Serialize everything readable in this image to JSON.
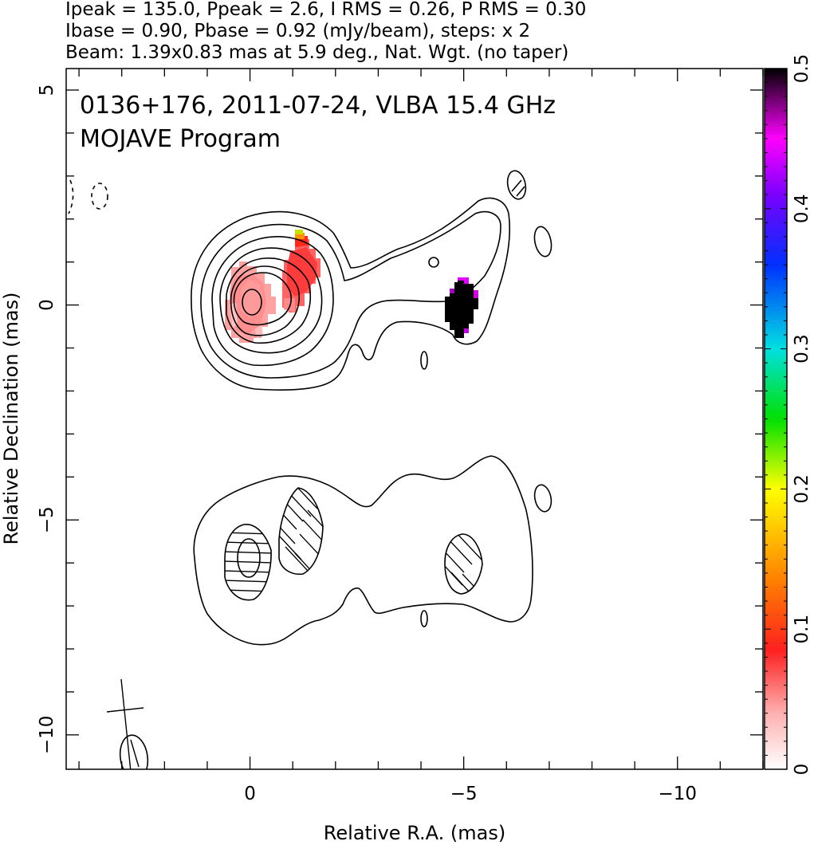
{
  "header": {
    "line1": "Ipeak = 135.0, Ppeak = 2.6, I RMS = 0.26, P RMS = 0.30",
    "line2": "Ibase = 0.90, Pbase = 0.92 (mJy/beam), steps: x 2",
    "line3": "Beam: 1.39x0.83 mas at 5.9 deg., Nat. Wgt. (no taper)"
  },
  "plot_labels": {
    "title": "0136+176, 2011-07-24, VLBA 15.4 GHz",
    "program": "MOJAVE Program"
  },
  "chart_data": {
    "type": "heatmap",
    "xlabel": "Relative R.A. (mas)",
    "ylabel": "Relative Declination (mas)",
    "xlim": [
      4.3,
      -12.0
    ],
    "ylim": [
      -10.8,
      5.5
    ],
    "x_ticks": [
      {
        "value": 0,
        "label": "0"
      },
      {
        "value": -5,
        "label": "−5"
      },
      {
        "value": -10,
        "label": "−10"
      }
    ],
    "y_ticks": [
      {
        "value": 5,
        "label": "5"
      },
      {
        "value": 0,
        "label": "0"
      },
      {
        "value": -5,
        "label": "−5"
      },
      {
        "value": -10,
        "label": "−10"
      }
    ],
    "colorbar": {
      "range": [
        0,
        0.5
      ],
      "ticks": [
        "0",
        "0.1",
        "0.2",
        "0.3",
        "0.4",
        "0.5"
      ],
      "colors": [
        "#ffffff",
        "#ffb0b0",
        "#ff2020",
        "#ff8000",
        "#ffff00",
        "#00e000",
        "#00e0e0",
        "#0030ff",
        "#7a00ff",
        "#ff00ff",
        "#000000"
      ]
    },
    "fractional_polarization_regions": [
      {
        "component": "core",
        "ra": 0.1,
        "dec": -0.1,
        "value": 0.04,
        "color": "#ff9b9b"
      },
      {
        "component": "inner-jet",
        "ra": -1.05,
        "dec": 0.6,
        "value": 0.08,
        "color": "#ff5a5a"
      },
      {
        "component": "jet-knot",
        "ra": -4.95,
        "dec": 0.0,
        "value": 0.5,
        "color": "#000000"
      }
    ]
  }
}
